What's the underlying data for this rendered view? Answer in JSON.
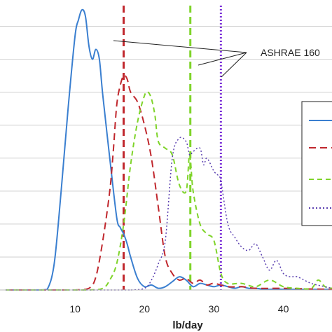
{
  "chart_data": {
    "type": "line",
    "title": "",
    "xlabel": "lb/day",
    "ylabel": "",
    "xlim": [
      0,
      47
    ],
    "ylim": [
      0,
      8.5
    ],
    "x_ticks": [
      10,
      20,
      30,
      40
    ],
    "grid": "horizontal",
    "legend_position": "right",
    "annotation": {
      "text": "ASHRAE 160",
      "targets_x": [
        17,
        26.6,
        31
      ]
    },
    "series": [
      {
        "color": "#3a7fd0",
        "dash": "solid",
        "x": [
          0,
          3,
          5,
          6,
          7,
          8,
          9,
          10,
          10.5,
          11,
          11.5,
          12,
          12.5,
          13,
          13.5,
          14,
          15,
          16,
          16.5,
          17,
          17.5,
          18,
          19,
          20,
          21,
          22,
          23,
          24,
          25,
          26,
          27,
          28,
          29,
          30,
          31,
          32,
          33,
          34,
          35,
          36,
          37,
          38,
          39,
          40,
          42,
          45,
          47
        ],
        "y": [
          0,
          0,
          0,
          0.02,
          0.8,
          3.0,
          5.5,
          7.7,
          8.2,
          8.5,
          8.3,
          7.4,
          7.0,
          7.3,
          7.0,
          5.9,
          4.0,
          2.2,
          1.9,
          1.7,
          1.4,
          1.0,
          0.35,
          0.1,
          0.15,
          0.05,
          0.1,
          0.25,
          0.4,
          0.3,
          0.1,
          0.2,
          0.15,
          0.1,
          0.15,
          0.1,
          0.05,
          0.1,
          0.05,
          0.05,
          0.03,
          0.02,
          0.03,
          0.02,
          0.02,
          0.02,
          0.02
        ]
      },
      {
        "color": "#c0272d",
        "dash": "long-dash",
        "x": [
          0,
          5,
          8,
          10,
          12,
          13,
          14,
          15,
          15.5,
          16,
          16.5,
          17,
          17.5,
          18,
          19,
          20,
          21,
          22,
          23,
          24,
          25,
          26,
          27,
          28,
          29,
          30,
          32,
          34,
          36,
          40,
          44,
          47
        ],
        "y": [
          0,
          0,
          0,
          0,
          0.05,
          0.4,
          1.5,
          3.0,
          4.2,
          5.6,
          6.2,
          6.5,
          6.4,
          6.0,
          5.7,
          5.0,
          4.0,
          2.5,
          1.0,
          0.5,
          0.3,
          0.35,
          0.2,
          0.3,
          0.15,
          0.2,
          0.1,
          0.1,
          0.05,
          0.05,
          0.03,
          0.02
        ]
      },
      {
        "color": "#7fd42a",
        "dash": "dash",
        "x": [
          0,
          10,
          12,
          14,
          15,
          16,
          17,
          18,
          19,
          20,
          20.5,
          21,
          21.5,
          22,
          23,
          24,
          25,
          26,
          26.5,
          27,
          28,
          29,
          30,
          31,
          32,
          34,
          36,
          38,
          40,
          42,
          44,
          45,
          46,
          47
        ],
        "y": [
          0,
          0,
          0,
          0.05,
          0.3,
          0.8,
          2.0,
          3.8,
          5.1,
          5.9,
          6.0,
          5.8,
          5.3,
          4.5,
          4.3,
          4.1,
          3.2,
          3.0,
          4.1,
          3.0,
          2.0,
          1.7,
          1.5,
          0.5,
          0.2,
          0.2,
          0.1,
          0.3,
          0.1,
          0.05,
          0.05,
          0.3,
          0.1,
          0.05
        ]
      },
      {
        "color": "#5a3fb0",
        "dash": "dot",
        "x": [
          0,
          16,
          18,
          20,
          21,
          22,
          23,
          24,
          25,
          26,
          26.5,
          27,
          28,
          28.5,
          29,
          30,
          30.5,
          31,
          32,
          33,
          34,
          35,
          36,
          37,
          38,
          39,
          40,
          41,
          42,
          44,
          46,
          47
        ],
        "y": [
          0,
          0,
          0,
          0.05,
          0.3,
          0.8,
          1.5,
          4.0,
          4.6,
          4.5,
          4.1,
          4.2,
          4.3,
          3.8,
          4.0,
          3.6,
          3.5,
          3.3,
          2.0,
          1.6,
          1.3,
          1.2,
          1.4,
          1.0,
          0.6,
          0.9,
          0.5,
          0.4,
          0.4,
          0.2,
          0.1,
          0.05
        ]
      }
    ],
    "vertical_lines": [
      {
        "x": 17,
        "color": "#c0272d",
        "dash": "long-dash"
      },
      {
        "x": 26.6,
        "color": "#7fd42a",
        "dash": "long-dash"
      },
      {
        "x": 31,
        "color": "#7b2fd8",
        "dash": "dot"
      }
    ]
  }
}
